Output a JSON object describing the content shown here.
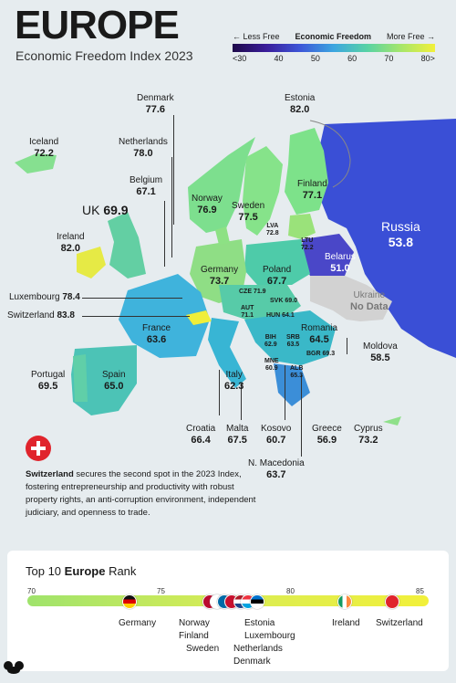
{
  "title": "EUROPE",
  "subtitle": "Economic Freedom Index 2023",
  "legend": {
    "less": "← Less Free",
    "label": "Economic Freedom",
    "more": "More Free →",
    "ticks": [
      "<30",
      "40",
      "50",
      "60",
      "70",
      "80>"
    ]
  },
  "countries": {
    "denmark": {
      "name": "Denmark",
      "score": "77.6"
    },
    "estonia": {
      "name": "Estonia",
      "score": "82.0"
    },
    "iceland": {
      "name": "Iceland",
      "score": "72.2"
    },
    "netherlands": {
      "name": "Netherlands",
      "score": "78.0"
    },
    "finland": {
      "name": "Finland",
      "score": "77.1"
    },
    "belgium": {
      "name": "Belgium",
      "score": "67.1"
    },
    "norway": {
      "name": "Norway",
      "score": "76.9"
    },
    "sweden": {
      "name": "Sweden",
      "score": "77.5"
    },
    "uk": {
      "name": "UK",
      "score": "69.9"
    },
    "lva": {
      "name": "LVA",
      "score": "72.8"
    },
    "ltu": {
      "name": "LTU",
      "score": "72.2"
    },
    "russia": {
      "name": "Russia",
      "score": "53.8"
    },
    "ireland": {
      "name": "Ireland",
      "score": "82.0"
    },
    "belarus": {
      "name": "Belarus",
      "score": "51.0"
    },
    "germany": {
      "name": "Germany",
      "score": "73.7"
    },
    "poland": {
      "name": "Poland",
      "score": "67.7"
    },
    "ukraine": {
      "name": "Ukraine",
      "score": "No Data"
    },
    "cze": {
      "name": "CZE",
      "score": "71.9"
    },
    "svk": {
      "name": "SVK",
      "score": "69.0"
    },
    "luxembourg": {
      "name": "Luxembourg",
      "score": "78.4"
    },
    "aut": {
      "name": "AUT",
      "score": "71.1"
    },
    "hun": {
      "name": "HUN",
      "score": "64.1"
    },
    "switzerland": {
      "name": "Switzerland",
      "score": "83.8"
    },
    "france": {
      "name": "France",
      "score": "63.6"
    },
    "romania": {
      "name": "Romania",
      "score": "64.5"
    },
    "bih": {
      "name": "BIH",
      "score": "62.9"
    },
    "srb": {
      "name": "SRB",
      "score": "63.5"
    },
    "bgr": {
      "name": "BGR",
      "score": "69.3"
    },
    "moldova": {
      "name": "Moldova",
      "score": "58.5"
    },
    "mne": {
      "name": "MNE",
      "score": "60.9"
    },
    "portugal": {
      "name": "Portugal",
      "score": "69.5"
    },
    "spain": {
      "name": "Spain",
      "score": "65.0"
    },
    "italy": {
      "name": "Italy",
      "score": "62.3"
    },
    "alb": {
      "name": "ALB",
      "score": "65.3"
    },
    "croatia": {
      "name": "Croatia",
      "score": "66.4"
    },
    "malta": {
      "name": "Malta",
      "score": "67.5"
    },
    "kosovo": {
      "name": "Kosovo",
      "score": "60.7"
    },
    "greece": {
      "name": "Greece",
      "score": "56.9"
    },
    "cyprus": {
      "name": "Cyprus",
      "score": "73.2"
    },
    "nmacedonia": {
      "name": "N. Macedonia",
      "score": "63.7"
    }
  },
  "description": {
    "highlight": "Switzerland",
    "text": " secures the second spot in the 2023 Index, fostering entrepreneurship and productivity with robust property rights, an anti-corruption environment, independent judiciary, and openness to trade."
  },
  "rank": {
    "title_pre": "Top 10 ",
    "title_bold": "Europe",
    "title_post": " Rank",
    "ticks": [
      "70",
      "75",
      "80",
      "85"
    ],
    "names": [
      "Germany",
      "Norway",
      "Finland",
      "Sweden",
      "Estonia",
      "Luxembourg",
      "Netherlands",
      "Denmark",
      "Ireland",
      "Switzerland"
    ]
  },
  "colors": {
    "russia": "#3a4fd6",
    "belarus": "#4a47c8",
    "ukraine": "#d2d2d2",
    "switzerland": "#f0ee3a",
    "ireland": "#e6ea45"
  }
}
